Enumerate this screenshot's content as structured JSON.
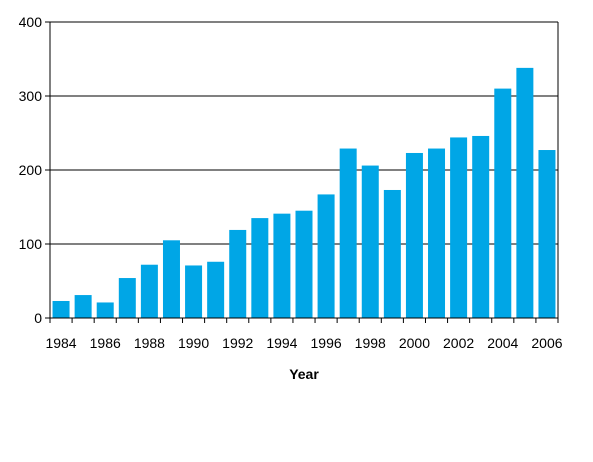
{
  "chart_data": {
    "type": "bar",
    "title": "",
    "xlabel": "Year",
    "ylabel": "",
    "categories": [
      "1984",
      "1985",
      "1986",
      "1987",
      "1988",
      "1989",
      "1990",
      "1991",
      "1992",
      "1993",
      "1994",
      "1995",
      "1996",
      "1997",
      "1998",
      "1999",
      "2000",
      "2001",
      "2002",
      "2003",
      "2004",
      "2005",
      "2006"
    ],
    "values": [
      23,
      31,
      21,
      54,
      72,
      105,
      71,
      76,
      119,
      135,
      141,
      145,
      167,
      229,
      206,
      173,
      223,
      229,
      244,
      246,
      310,
      338,
      227
    ],
    "x_tick_labels": [
      "1984",
      "1986",
      "1988",
      "1990",
      "1992",
      "1994",
      "1996",
      "1998",
      "2000",
      "2002",
      "2004",
      "2006"
    ],
    "y_tick_labels": [
      "0",
      "100",
      "200",
      "300",
      "400"
    ],
    "y_ticks": [
      0,
      100,
      200,
      300,
      400
    ],
    "ylim": [
      0,
      400
    ],
    "grid": "horizontal",
    "legend": "none",
    "colors": {
      "bar": "#00A6E6",
      "grid": "#000000",
      "axis": "#000000"
    }
  }
}
